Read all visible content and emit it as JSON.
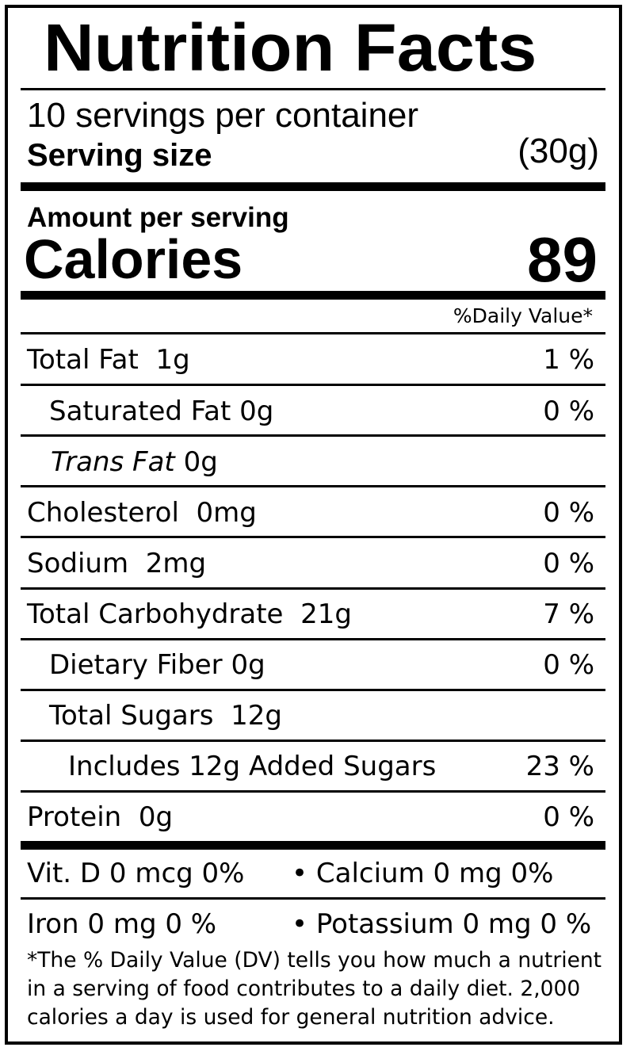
{
  "title": "Nutrition Facts",
  "servings_per_container": "10 servings per container",
  "serving_size_label": "Serving size",
  "serving_size_value": "(30g)",
  "amount_per_serving": "Amount per serving",
  "calories_label": "Calories",
  "calories_value": "89",
  "daily_value_header": "%Daily Value*",
  "nutrients": {
    "total_fat": {
      "label": "Total Fat",
      "amount": "1g",
      "dv": "1 %"
    },
    "saturated_fat": {
      "label": "Saturated Fat",
      "amount": "0g",
      "dv": "0 %"
    },
    "trans_fat": {
      "label": "Trans Fat",
      "amount": "0g"
    },
    "cholesterol": {
      "label": "Cholesterol",
      "amount": "0mg",
      "dv": "0 %"
    },
    "sodium": {
      "label": "Sodium",
      "amount": "2mg",
      "dv": "0 %"
    },
    "total_carbohydrate": {
      "label": "Total Carbohydrate",
      "amount": "21g",
      "dv": "7 %"
    },
    "dietary_fiber": {
      "label": "Dietary Fiber",
      "amount": "0g",
      "dv": "0 %"
    },
    "total_sugars": {
      "label": "Total Sugars",
      "amount": "12g"
    },
    "added_sugars": {
      "label": "Includes 12g Added Sugars",
      "dv": "23 %"
    },
    "protein": {
      "label": "Protein",
      "amount": "0g",
      "dv": "0 %"
    }
  },
  "vitamins": {
    "vit_d": "Vit. D 0 mcg 0%",
    "calcium": "• Calcium 0 mg 0%",
    "iron": "Iron 0 mg 0 %",
    "potassium": "• Potassium 0 mg 0 %"
  },
  "footnote": "*The % Daily Value (DV) tells you how much a nutrient in a serving of food contributes to a daily diet. 2,000 calories a day is used for general nutrition advice."
}
